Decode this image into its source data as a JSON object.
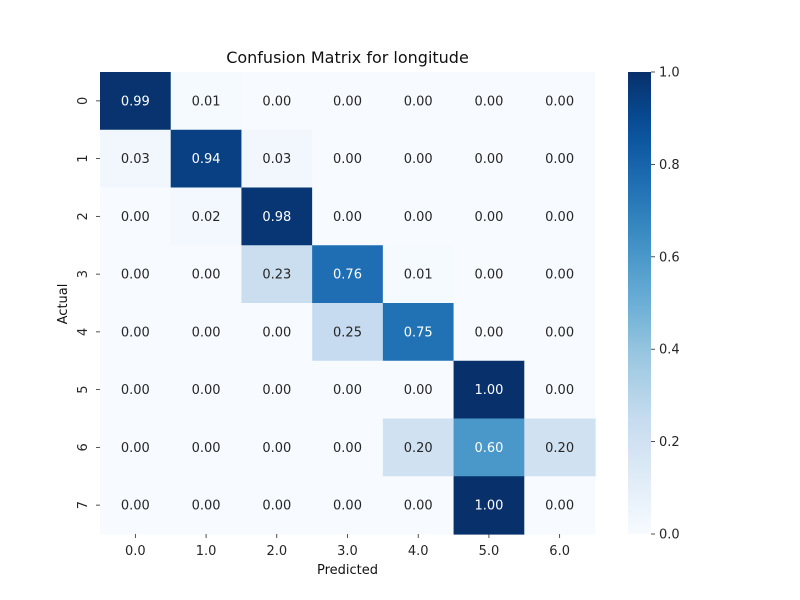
{
  "chart_data": {
    "type": "heatmap",
    "title": "Confusion Matrix for longitude",
    "xlabel": "Predicted",
    "ylabel": "Actual",
    "x_categories": [
      "0.0",
      "1.0",
      "2.0",
      "3.0",
      "4.0",
      "5.0",
      "6.0"
    ],
    "y_categories": [
      "0",
      "1",
      "2",
      "3",
      "4",
      "5",
      "6",
      "7"
    ],
    "values": [
      [
        0.99,
        0.01,
        0.0,
        0.0,
        0.0,
        0.0,
        0.0
      ],
      [
        0.03,
        0.94,
        0.03,
        0.0,
        0.0,
        0.0,
        0.0
      ],
      [
        0.0,
        0.02,
        0.98,
        0.0,
        0.0,
        0.0,
        0.0
      ],
      [
        0.0,
        0.0,
        0.23,
        0.76,
        0.01,
        0.0,
        0.0
      ],
      [
        0.0,
        0.0,
        0.0,
        0.25,
        0.75,
        0.0,
        0.0
      ],
      [
        0.0,
        0.0,
        0.0,
        0.0,
        0.0,
        1.0,
        0.0
      ],
      [
        0.0,
        0.0,
        0.0,
        0.0,
        0.2,
        0.6,
        0.2
      ],
      [
        0.0,
        0.0,
        0.0,
        0.0,
        0.0,
        1.0,
        0.0
      ]
    ],
    "value_format": "2 decimals",
    "colormap": "Blues",
    "colorbar": {
      "range": [
        0.0,
        1.0
      ],
      "ticks": [
        0.0,
        0.2,
        0.4,
        0.6,
        0.8,
        1.0
      ],
      "tick_labels": [
        "0.0",
        "0.2",
        "0.4",
        "0.6",
        "0.8",
        "1.0"
      ]
    },
    "colors": {
      "low": "#f7fbff",
      "high": "#08306b",
      "text_dark": "#262626",
      "text_light": "#ffffff"
    }
  }
}
